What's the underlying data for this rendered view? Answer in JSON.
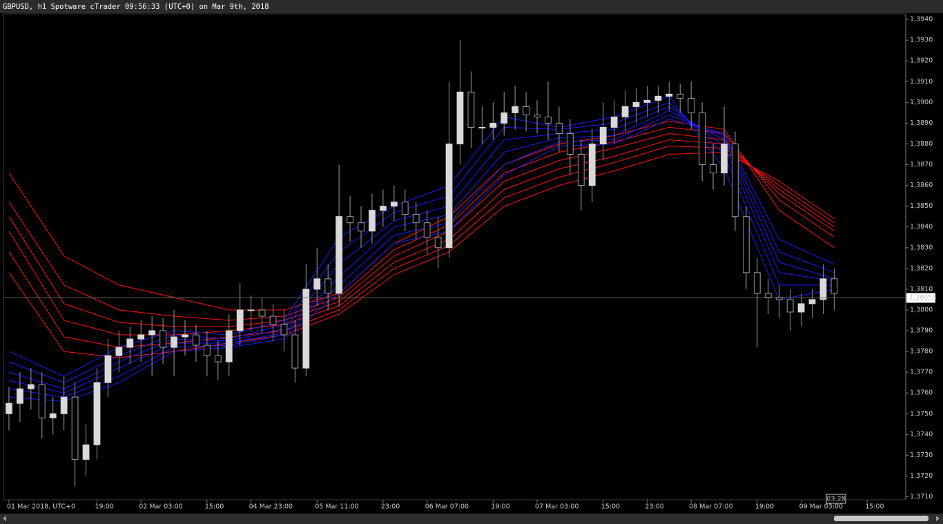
{
  "chart_data": {
    "type": "candlestick",
    "title": "GBPUSD, h1 Spotware cTrader 09:56:33 (UTC+0) on Mar 9th, 2018",
    "x": [
      0,
      1,
      2,
      3,
      4,
      5,
      6,
      7,
      8,
      9,
      10,
      11,
      12,
      13,
      14,
      15,
      16,
      17,
      18,
      19,
      20,
      21,
      22,
      23,
      24,
      25,
      26,
      27,
      28,
      29,
      30,
      31,
      32,
      33,
      34,
      35,
      36,
      37,
      38,
      39,
      40,
      41,
      42,
      43,
      44,
      45,
      46,
      47,
      48,
      49,
      50,
      51,
      52,
      53,
      54,
      55,
      56,
      57,
      58,
      59,
      60,
      61,
      62,
      63,
      64,
      65,
      66,
      67,
      68,
      69,
      70,
      71,
      72,
      73,
      74,
      75
    ],
    "open": [
      1.375,
      1.3755,
      1.3762,
      1.3764,
      1.3748,
      1.375,
      1.3758,
      1.3728,
      1.3735,
      1.3765,
      1.3778,
      1.3782,
      1.3786,
      1.3788,
      1.379,
      1.3782,
      1.3787,
      1.3788,
      1.3783,
      1.3778,
      1.3775,
      1.379,
      1.38,
      1.38,
      1.3797,
      1.3793,
      1.3788,
      1.3772,
      1.381,
      1.3815,
      1.3808,
      1.3845,
      1.3842,
      1.3838,
      1.3848,
      1.385,
      1.3852,
      1.3846,
      1.3842,
      1.3835,
      1.383,
      1.388,
      1.3905,
      1.3888,
      1.3888,
      1.389,
      1.3895,
      1.3898,
      1.3894,
      1.3893,
      1.389,
      1.3885,
      1.3875,
      1.386,
      1.388,
      1.3888,
      1.3893,
      1.3898,
      1.39,
      1.3901,
      1.3903,
      1.3904,
      1.3902,
      1.3895,
      1.387,
      1.3866,
      1.388,
      1.3845,
      1.3818,
      1.3808,
      1.3806,
      1.3805,
      1.3799,
      1.3803,
      1.3805,
      1.3815
    ],
    "high": [
      1.3763,
      1.377,
      1.3772,
      1.377,
      1.3758,
      1.3768,
      1.3765,
      1.3745,
      1.3772,
      1.3786,
      1.379,
      1.3792,
      1.3795,
      1.3797,
      1.3796,
      1.38,
      1.3795,
      1.3793,
      1.379,
      1.3785,
      1.3798,
      1.3813,
      1.3807,
      1.3806,
      1.3803,
      1.38,
      1.3795,
      1.3822,
      1.383,
      1.3822,
      1.387,
      1.3855,
      1.385,
      1.3856,
      1.3858,
      1.386,
      1.3858,
      1.3852,
      1.3848,
      1.3845,
      1.391,
      1.393,
      1.3915,
      1.3898,
      1.39,
      1.3905,
      1.3908,
      1.3905,
      1.3901,
      1.391,
      1.3898,
      1.3892,
      1.3882,
      1.3887,
      1.39,
      1.3901,
      1.3906,
      1.3907,
      1.3908,
      1.3908,
      1.391,
      1.3909,
      1.391,
      1.39,
      1.388,
      1.3898,
      1.3886,
      1.385,
      1.3825,
      1.3815,
      1.3812,
      1.381,
      1.3808,
      1.381,
      1.3822,
      1.382
    ],
    "low": [
      1.3742,
      1.3746,
      1.3752,
      1.3738,
      1.374,
      1.3742,
      1.3715,
      1.372,
      1.3728,
      1.3758,
      1.377,
      1.3774,
      1.3775,
      1.3768,
      1.3774,
      1.3768,
      1.3778,
      1.3775,
      1.3768,
      1.3766,
      1.3768,
      1.3783,
      1.379,
      1.3789,
      1.3785,
      1.378,
      1.3765,
      1.3768,
      1.3802,
      1.38,
      1.3802,
      1.3833,
      1.383,
      1.3832,
      1.384,
      1.3843,
      1.3838,
      1.3834,
      1.3827,
      1.382,
      1.3825,
      1.387,
      1.3878,
      1.388,
      1.3882,
      1.3884,
      1.3887,
      1.3886,
      1.3885,
      1.3882,
      1.3876,
      1.3865,
      1.3848,
      1.3852,
      1.3872,
      1.388,
      1.3886,
      1.389,
      1.3893,
      1.3895,
      1.3896,
      1.3895,
      1.3887,
      1.3862,
      1.3858,
      1.386,
      1.3838,
      1.381,
      1.3782,
      1.3798,
      1.3796,
      1.379,
      1.3792,
      1.3796,
      1.3798,
      1.38
    ],
    "close": [
      1.3755,
      1.3762,
      1.3764,
      1.3748,
      1.375,
      1.3758,
      1.3728,
      1.3735,
      1.3765,
      1.3778,
      1.3782,
      1.3786,
      1.3788,
      1.379,
      1.3782,
      1.3787,
      1.3788,
      1.3783,
      1.3778,
      1.3775,
      1.379,
      1.38,
      1.38,
      1.3797,
      1.3793,
      1.3788,
      1.3772,
      1.381,
      1.3815,
      1.3808,
      1.3845,
      1.3842,
      1.3838,
      1.3848,
      1.385,
      1.3852,
      1.3846,
      1.3842,
      1.3835,
      1.383,
      1.388,
      1.3905,
      1.3888,
      1.3888,
      1.389,
      1.3895,
      1.3898,
      1.3894,
      1.3893,
      1.389,
      1.3885,
      1.3875,
      1.386,
      1.388,
      1.3888,
      1.3893,
      1.3898,
      1.39,
      1.3901,
      1.3903,
      1.3904,
      1.3902,
      1.3895,
      1.387,
      1.3866,
      1.388,
      1.3845,
      1.3818,
      1.3808,
      1.3806,
      1.3805,
      1.3799,
      1.3803,
      1.3805,
      1.3815,
      1.3808
    ],
    "up_color": "#d9d9d9",
    "down_color": "#000000",
    "wick_color": "#a0a0a0",
    "series": [
      {
        "color": "#ff1010",
        "x": [
          0,
          5,
          10,
          15,
          20,
          25,
          30,
          35,
          40,
          45,
          50,
          55,
          60,
          65,
          70,
          75
        ],
        "values": [
          1.3866,
          1.3826,
          1.3812,
          1.3806,
          1.38,
          1.38,
          1.3808,
          1.3832,
          1.3845,
          1.387,
          1.388,
          1.3884,
          1.3891,
          1.3887,
          1.3848,
          1.383
        ]
      },
      {
        "color": "#ff1010",
        "x": [
          0,
          5,
          10,
          15,
          20,
          25,
          30,
          35,
          40,
          45,
          50,
          55,
          60,
          65,
          70,
          75
        ],
        "values": [
          1.3852,
          1.3812,
          1.38,
          1.3797,
          1.3795,
          1.3797,
          1.3806,
          1.3829,
          1.3841,
          1.3866,
          1.3876,
          1.3881,
          1.3888,
          1.3885,
          1.3853,
          1.3835
        ]
      },
      {
        "color": "#ff1010",
        "x": [
          0,
          5,
          10,
          15,
          20,
          25,
          30,
          35,
          40,
          45,
          50,
          55,
          60,
          65,
          70,
          75
        ],
        "values": [
          1.3845,
          1.3803,
          1.3794,
          1.3792,
          1.3792,
          1.3795,
          1.3804,
          1.3826,
          1.3838,
          1.3862,
          1.3872,
          1.3878,
          1.3885,
          1.3882,
          1.3856,
          1.3838
        ]
      },
      {
        "color": "#ff1010",
        "x": [
          0,
          5,
          10,
          15,
          20,
          25,
          30,
          35,
          40,
          45,
          50,
          55,
          60,
          65,
          70,
          75
        ],
        "values": [
          1.3838,
          1.3795,
          1.3788,
          1.3788,
          1.379,
          1.3793,
          1.3802,
          1.3823,
          1.3834,
          1.3858,
          1.3868,
          1.3874,
          1.3882,
          1.388,
          1.3858,
          1.384
        ]
      },
      {
        "color": "#ff1010",
        "x": [
          0,
          5,
          10,
          15,
          20,
          25,
          30,
          35,
          40,
          45,
          50,
          55,
          60,
          65,
          70,
          75
        ],
        "values": [
          1.3828,
          1.3787,
          1.3782,
          1.3784,
          1.3787,
          1.379,
          1.38,
          1.382,
          1.3831,
          1.3854,
          1.3864,
          1.3871,
          1.3879,
          1.3878,
          1.386,
          1.3842
        ]
      },
      {
        "color": "#ff1010",
        "x": [
          0,
          5,
          10,
          15,
          20,
          25,
          30,
          35,
          40,
          45,
          50,
          55,
          60,
          65,
          70,
          75
        ],
        "values": [
          1.3818,
          1.378,
          1.3777,
          1.378,
          1.3784,
          1.3788,
          1.3798,
          1.3817,
          1.3828,
          1.385,
          1.386,
          1.3867,
          1.3875,
          1.3876,
          1.3862,
          1.3844
        ]
      },
      {
        "color": "#1a1aff",
        "x": [
          0,
          5,
          10,
          15,
          20,
          25,
          30,
          35,
          40,
          45,
          50,
          55,
          60,
          65,
          70,
          75
        ],
        "values": [
          1.378,
          1.3768,
          1.3782,
          1.379,
          1.3788,
          1.3795,
          1.3835,
          1.385,
          1.386,
          1.3893,
          1.3888,
          1.3893,
          1.3903,
          1.3868,
          1.3805,
          1.381
        ]
      },
      {
        "color": "#1a1aff",
        "x": [
          0,
          5,
          10,
          15,
          20,
          25,
          30,
          35,
          40,
          45,
          50,
          55,
          60,
          65,
          70,
          75
        ],
        "values": [
          1.3775,
          1.3765,
          1.3778,
          1.3788,
          1.3786,
          1.3793,
          1.3828,
          1.3847,
          1.3855,
          1.3888,
          1.3887,
          1.389,
          1.39,
          1.3875,
          1.3812,
          1.3812
        ]
      },
      {
        "color": "#1a1aff",
        "x": [
          0,
          5,
          10,
          15,
          20,
          25,
          30,
          35,
          40,
          45,
          50,
          55,
          60,
          65,
          70,
          75
        ],
        "values": [
          1.377,
          1.3762,
          1.3775,
          1.3786,
          1.3785,
          1.3791,
          1.3822,
          1.3843,
          1.385,
          1.3882,
          1.3885,
          1.3887,
          1.3898,
          1.3879,
          1.3818,
          1.3814
        ]
      },
      {
        "color": "#1a1aff",
        "x": [
          0,
          5,
          10,
          15,
          20,
          25,
          30,
          35,
          40,
          45,
          50,
          55,
          60,
          65,
          70,
          75
        ],
        "values": [
          1.3766,
          1.376,
          1.3772,
          1.3784,
          1.3784,
          1.3789,
          1.3816,
          1.384,
          1.3846,
          1.3876,
          1.3883,
          1.3884,
          1.3896,
          1.3882,
          1.3823,
          1.3815
        ]
      },
      {
        "color": "#1a1aff",
        "x": [
          0,
          5,
          10,
          15,
          20,
          25,
          30,
          35,
          40,
          45,
          50,
          55,
          60,
          65,
          70,
          75
        ],
        "values": [
          1.3762,
          1.3758,
          1.3768,
          1.3782,
          1.3783,
          1.3788,
          1.3812,
          1.3836,
          1.3842,
          1.387,
          1.3881,
          1.3882,
          1.3894,
          1.3884,
          1.3828,
          1.3818
        ]
      },
      {
        "color": "#1a1aff",
        "x": [
          0,
          5,
          10,
          15,
          20,
          25,
          30,
          35,
          40,
          45,
          50,
          55,
          60,
          65,
          70,
          75
        ],
        "values": [
          1.3758,
          1.3756,
          1.3765,
          1.378,
          1.3782,
          1.3786,
          1.3808,
          1.3832,
          1.3838,
          1.3865,
          1.3879,
          1.388,
          1.3892,
          1.3885,
          1.3834,
          1.3822
        ]
      }
    ],
    "xlim": [
      -0.5,
      81.5
    ],
    "xticks": [
      {
        "value": 0,
        "label": "01 Mar 2018, UTC+0"
      },
      {
        "value": 8,
        "label": "19:00"
      },
      {
        "value": 12,
        "label": "02 Mar 03:00"
      },
      {
        "value": 18,
        "label": "15:00"
      },
      {
        "value": 22,
        "label": "04 Mar 23:00"
      },
      {
        "value": 28,
        "label": "05 Mar 11:00"
      },
      {
        "value": 34,
        "label": "23:00"
      },
      {
        "value": 38,
        "label": "06 Mar 07:00"
      },
      {
        "value": 44,
        "label": "19:00"
      },
      {
        "value": 48,
        "label": "07 Mar 03:00"
      },
      {
        "value": 54,
        "label": "15:00"
      },
      {
        "value": 58,
        "label": "23:00"
      },
      {
        "value": 62,
        "label": "08 Mar 07:00"
      },
      {
        "value": 68,
        "label": "19:00"
      },
      {
        "value": 72,
        "label": "09 Mar 03:00"
      },
      {
        "value": 78,
        "label": "15:00"
      }
    ],
    "ylim": [
      1.37085,
      1.39427
    ],
    "yticks": [
      {
        "value": 1.394,
        "label": "1,3940"
      },
      {
        "value": 1.393,
        "label": "1,3930"
      },
      {
        "value": 1.392,
        "label": "1,3920"
      },
      {
        "value": 1.391,
        "label": "1,3910"
      },
      {
        "value": 1.39,
        "label": "1,3900"
      },
      {
        "value": 1.389,
        "label": "1,3890"
      },
      {
        "value": 1.388,
        "label": "1,3880"
      },
      {
        "value": 1.387,
        "label": "1,3870"
      },
      {
        "value": 1.386,
        "label": "1,3860"
      },
      {
        "value": 1.385,
        "label": "1,3850"
      },
      {
        "value": 1.384,
        "label": "1,3840"
      },
      {
        "value": 1.383,
        "label": "1,3830"
      },
      {
        "value": 1.382,
        "label": "1,3820"
      },
      {
        "value": 1.381,
        "label": "1,3810"
      },
      {
        "value": 1.38,
        "label": "1,3800"
      },
      {
        "value": 1.379,
        "label": "1,3790"
      },
      {
        "value": 1.378,
        "label": "1,3780"
      },
      {
        "value": 1.377,
        "label": "1,3770"
      },
      {
        "value": 1.376,
        "label": "1,3760"
      },
      {
        "value": 1.375,
        "label": "1,3750"
      },
      {
        "value": 1.374,
        "label": "1,3740"
      },
      {
        "value": 1.373,
        "label": "1,3730"
      },
      {
        "value": 1.372,
        "label": "1,3720"
      },
      {
        "value": 1.371,
        "label": "1,3710"
      }
    ],
    "grid": false,
    "current_price": {
      "value": 1.38058,
      "label": "1.38058"
    },
    "bar_timer": "03:28"
  }
}
